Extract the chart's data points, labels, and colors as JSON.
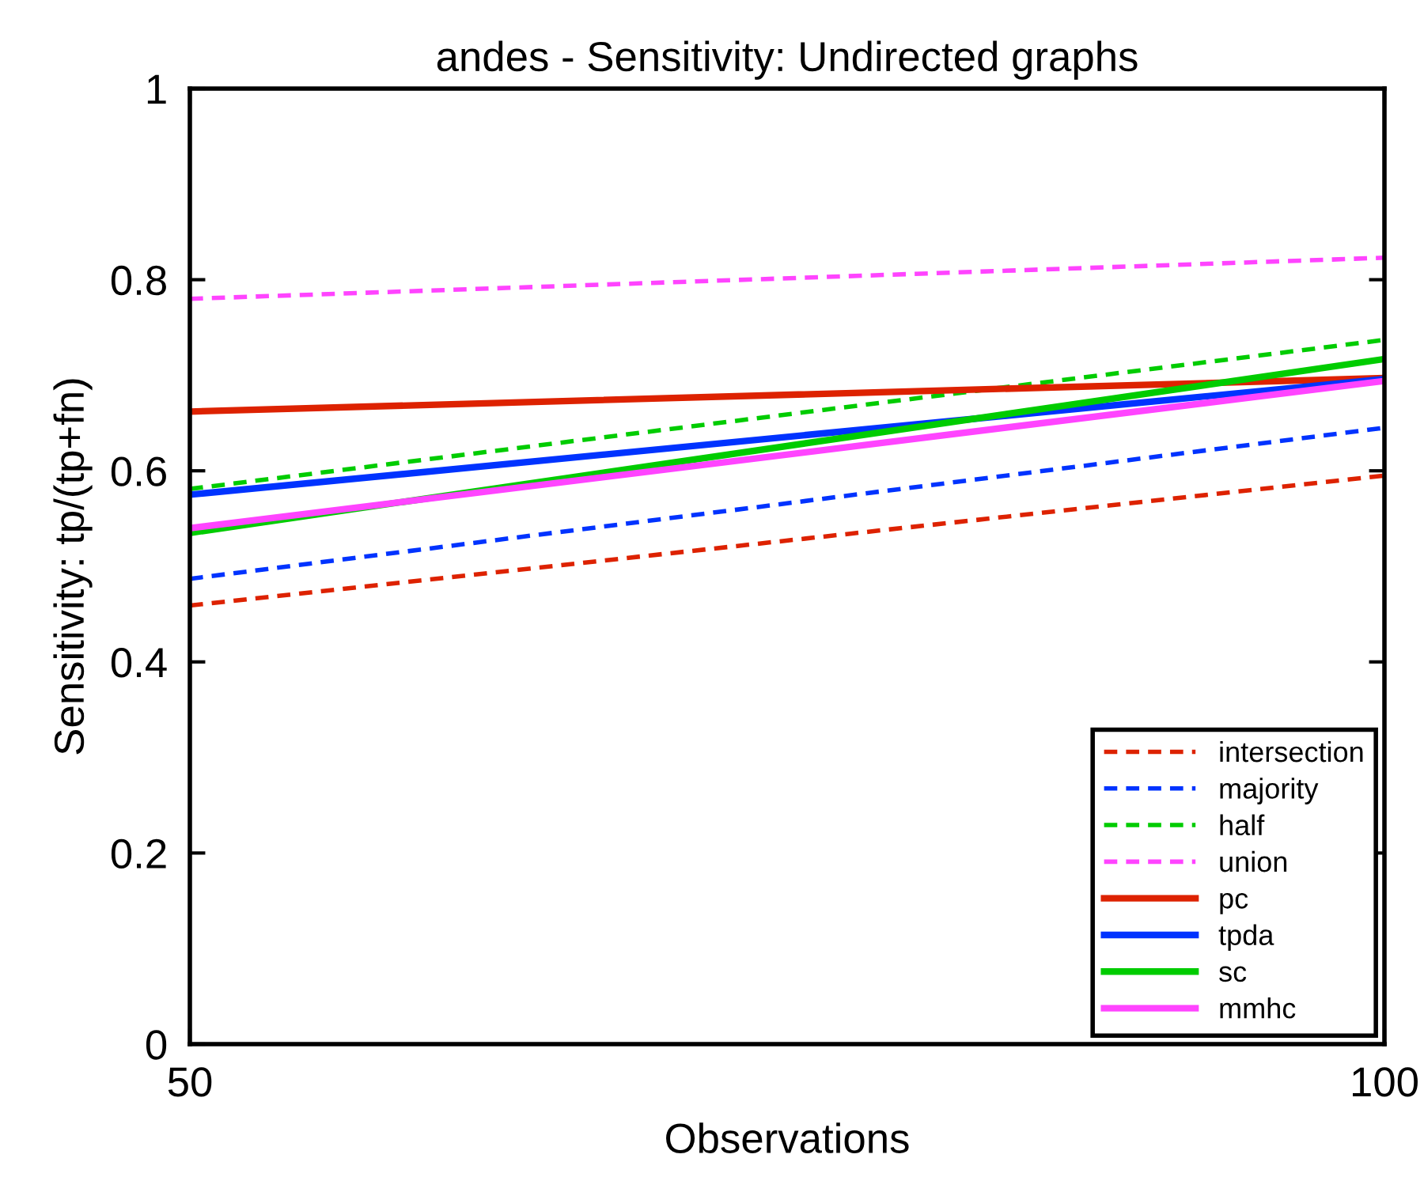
{
  "chart_data": {
    "type": "line",
    "title": "andes - Sensitivity: Undirected graphs",
    "xlabel": "Observations",
    "ylabel": "Sensitivity: tp/(tp+fn)",
    "x": [
      50,
      100
    ],
    "xlim": [
      50,
      100
    ],
    "xticks": [
      50,
      100
    ],
    "ylim": [
      0,
      1
    ],
    "yticks": [
      0,
      0.2,
      0.4,
      0.6,
      0.8,
      1
    ],
    "grid": false,
    "legend": "bottom right",
    "marker": "none",
    "series": [
      {
        "name": "intersection",
        "color": "#dd2200",
        "line_style": "dashed",
        "values": [
          0.459,
          0.595
        ]
      },
      {
        "name": "majority",
        "color": "#0033ff",
        "line_style": "dashed",
        "values": [
          0.487,
          0.645
        ]
      },
      {
        "name": "half",
        "color": "#00cc00",
        "line_style": "dashed",
        "values": [
          0.581,
          0.737
        ]
      },
      {
        "name": "union",
        "color": "#ff44ff",
        "line_style": "dashed",
        "values": [
          0.78,
          0.823
        ]
      },
      {
        "name": "pc",
        "color": "#dd2200",
        "line_style": "solid",
        "values": [
          0.662,
          0.697
        ]
      },
      {
        "name": "tpda",
        "color": "#0033ff",
        "line_style": "solid",
        "values": [
          0.575,
          0.696
        ]
      },
      {
        "name": "sc",
        "color": "#00cc00",
        "line_style": "solid",
        "values": [
          0.535,
          0.717
        ]
      },
      {
        "name": "mmhc",
        "color": "#ff44ff",
        "line_style": "solid",
        "values": [
          0.54,
          0.694
        ]
      }
    ]
  }
}
